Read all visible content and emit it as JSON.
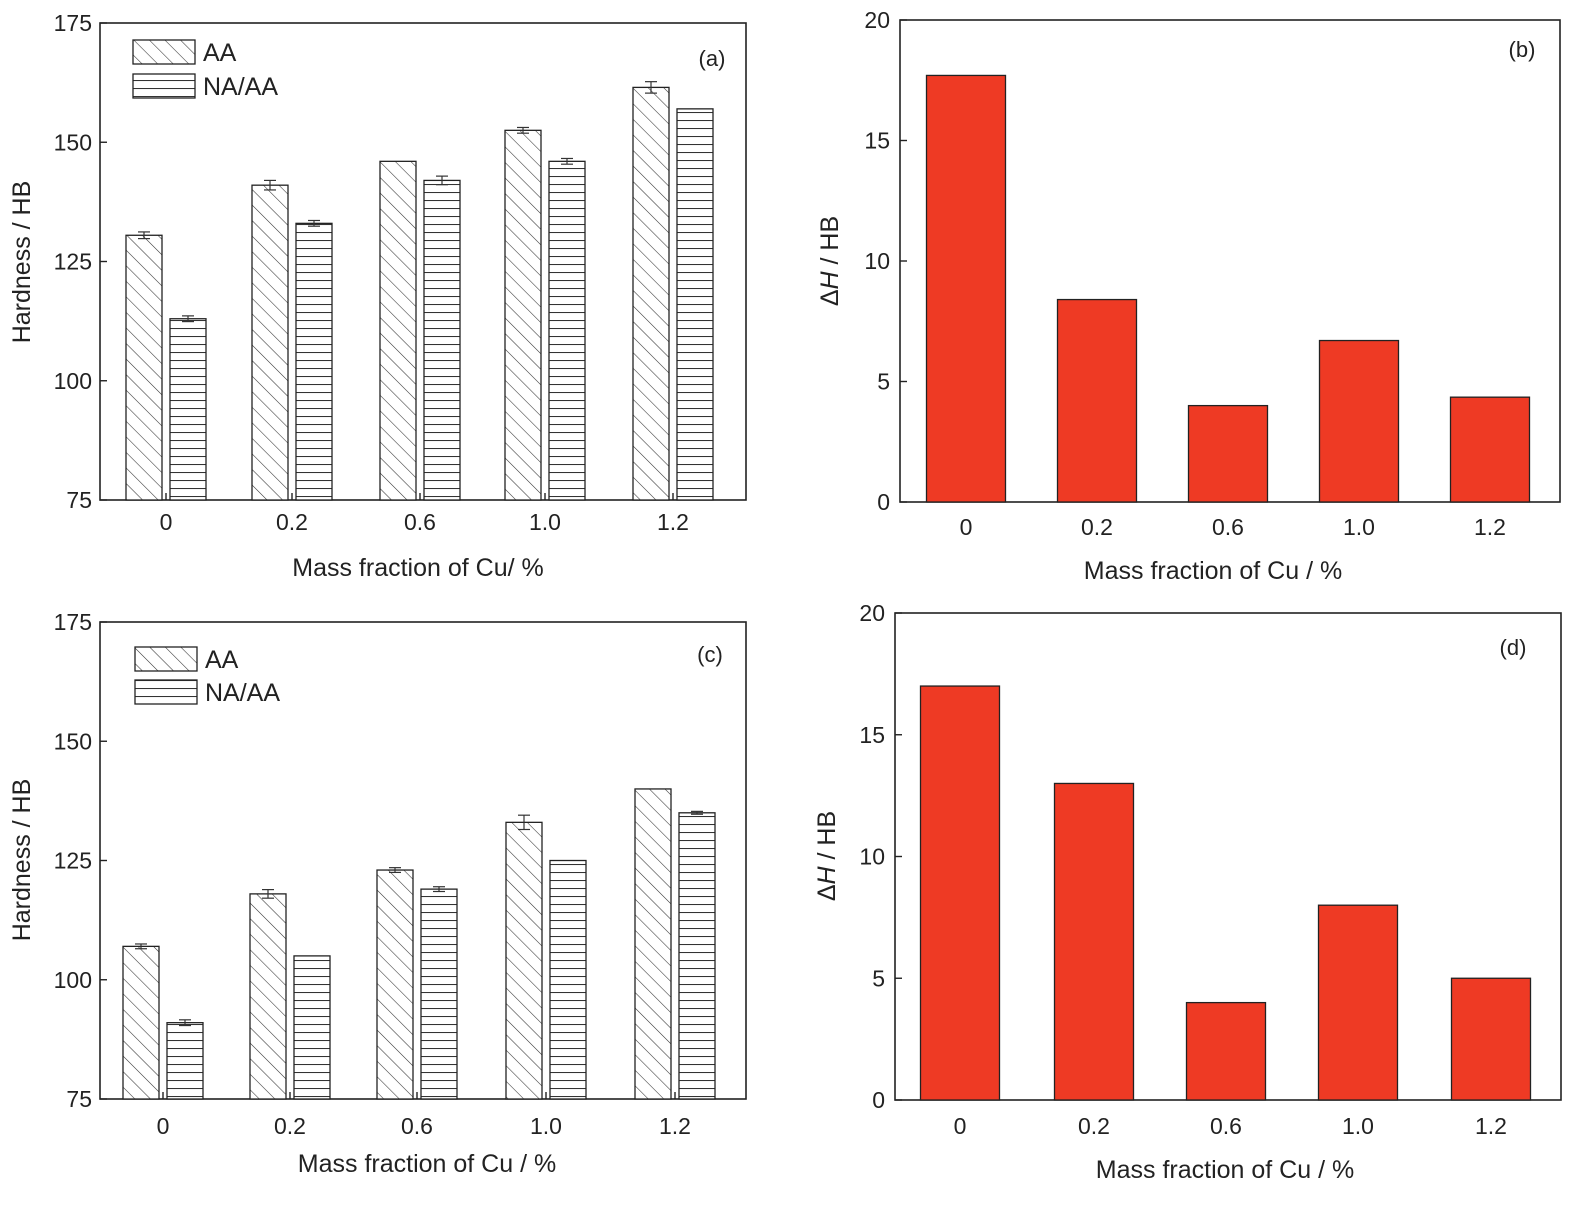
{
  "colors": {
    "delta_bar": "#ee3a24",
    "axis": "#222222",
    "hatch": "#333333"
  },
  "chart_data": [
    {
      "type": "bar",
      "panel_label": "(a)",
      "categories": [
        "0",
        "0.2",
        "0.6",
        "1.0",
        "1.2"
      ],
      "series": [
        {
          "name": "AA",
          "values": [
            130.5,
            141,
            146,
            152.5,
            161.5
          ],
          "errors": [
            0.7,
            1.0,
            0,
            0.6,
            1.2
          ],
          "pattern": "diagonal-hatch"
        },
        {
          "name": "NA/AA",
          "values": [
            113,
            133,
            142,
            146,
            157
          ],
          "errors": [
            0.6,
            0.6,
            0.9,
            0.6,
            0
          ],
          "pattern": "horizontal-hatch"
        }
      ],
      "xlabel": "Mass fraction of Cu/ %",
      "ylabel": "Hardness / HB",
      "ylim": [
        75,
        175
      ],
      "yticks": [
        "75",
        "100",
        "125",
        "150",
        "175"
      ],
      "legend_position": "top-left",
      "grid": false
    },
    {
      "type": "bar",
      "panel_label": "(b)",
      "categories": [
        "0",
        "0.2",
        "0.6",
        "1.0",
        "1.2"
      ],
      "series": [
        {
          "values": [
            17.7,
            8.4,
            4.0,
            6.7,
            4.35
          ]
        }
      ],
      "xlabel": "Mass fraction of Cu / %",
      "ylabel_prefix": "Δ",
      "ylabel_var": "H",
      "ylabel_suffix": " / HB",
      "ylim": [
        0,
        20
      ],
      "yticks": [
        "0",
        "5",
        "10",
        "15",
        "20"
      ],
      "grid": false
    },
    {
      "type": "bar",
      "panel_label": "(c)",
      "categories": [
        "0",
        "0.2",
        "0.6",
        "1.0",
        "1.2"
      ],
      "series": [
        {
          "name": "AA",
          "values": [
            107,
            118,
            123,
            133,
            140
          ],
          "errors": [
            0.5,
            0.9,
            0.5,
            1.5,
            0
          ],
          "pattern": "diagonal-hatch"
        },
        {
          "name": "NA/AA",
          "values": [
            91,
            105,
            119,
            125,
            135
          ],
          "errors": [
            0.6,
            0,
            0.5,
            0,
            0.3
          ],
          "pattern": "horizontal-hatch"
        }
      ],
      "xlabel": "Mass fraction of Cu / %",
      "ylabel": "Hardness / HB",
      "ylim": [
        75,
        175
      ],
      "yticks": [
        "75",
        "100",
        "125",
        "150",
        "175"
      ],
      "legend_position": "top-left",
      "grid": false
    },
    {
      "type": "bar",
      "panel_label": "(d)",
      "categories": [
        "0",
        "0.2",
        "0.6",
        "1.0",
        "1.2"
      ],
      "series": [
        {
          "values": [
            17,
            13,
            4,
            8,
            5
          ]
        }
      ],
      "xlabel": "Mass fraction of Cu / %",
      "ylabel_prefix": "Δ",
      "ylabel_var": "H",
      "ylabel_suffix": " / HB",
      "ylim": [
        0,
        20
      ],
      "yticks": [
        "0",
        "5",
        "10",
        "15",
        "20"
      ],
      "grid": false
    }
  ]
}
